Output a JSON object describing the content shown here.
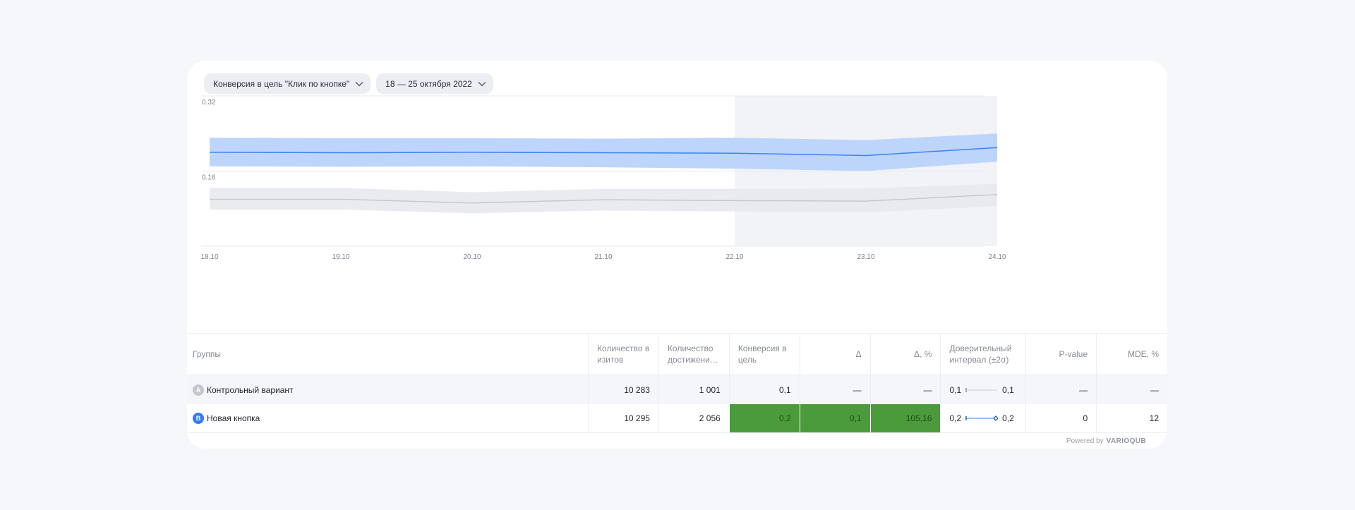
{
  "filters": {
    "metric_label": "Конверсия в цель \"Клик по кнопке\"",
    "date_label": "18 — 25 октября 2022"
  },
  "chart_data": {
    "type": "line",
    "x": [
      "18.10",
      "19.10",
      "20.10",
      "21.10",
      "22.10",
      "23.10",
      "24.10"
    ],
    "y_ticks": [
      "0.32",
      "0.16"
    ],
    "ylim": [
      0,
      0.32
    ],
    "grid": true,
    "highlight_range": [
      "22.10",
      "24.10"
    ],
    "series": [
      {
        "values": [
          0.2,
          0.199,
          0.2,
          0.199,
          0.198,
          0.193,
          0.21
        ],
        "lower": [
          0.17,
          0.169,
          0.17,
          0.168,
          0.165,
          0.16,
          0.18
        ],
        "upper": [
          0.231,
          0.23,
          0.23,
          0.229,
          0.231,
          0.226,
          0.24
        ],
        "color": "#3b82f6",
        "band_color": "#b9d3fb"
      },
      {
        "values": [
          0.1,
          0.1,
          0.092,
          0.099,
          0.097,
          0.096,
          0.11
        ],
        "lower": [
          0.078,
          0.078,
          0.07,
          0.076,
          0.074,
          0.072,
          0.085
        ],
        "upper": [
          0.124,
          0.124,
          0.115,
          0.122,
          0.122,
          0.123,
          0.133
        ],
        "color": "#c5c8d0",
        "band_color": "#e6e7ec"
      }
    ]
  },
  "table": {
    "headers": {
      "group": "Группы",
      "visits_1": "Количество в",
      "visits_2": "изитов",
      "goals_1": "Количество",
      "goals_2": "достижени…",
      "conv_1": "Конверсия в",
      "conv_2": "цель",
      "delta": "Δ",
      "delta_pct": "Δ, %",
      "ci_1": "Доверительный",
      "ci_2": "интервал (±2σ)",
      "pvalue": "P-value",
      "mde": "MDE, %"
    },
    "rows": [
      {
        "badge": "A",
        "name": "Контрольный вариант",
        "visits": "10 283",
        "goals": "1 001",
        "conversion": "0,1",
        "delta": "—",
        "delta_pct": "—",
        "ci_low": "0,1",
        "ci_high": "0,1",
        "pvalue": "—",
        "mde": "—"
      },
      {
        "badge": "B",
        "name": "Новая кнопка",
        "visits": "10 295",
        "goals": "2 056",
        "conversion": "0,2",
        "delta": "0,1",
        "delta_pct": "105,16",
        "ci_low": "0,2",
        "ci_high": "0,2",
        "pvalue": "0",
        "mde": "12"
      }
    ]
  },
  "footer": {
    "powered_by": "Powered by",
    "brand": "VARIOQUB"
  },
  "colors": {
    "accent": "#2f7cf6",
    "significant": "#4b9b3c"
  }
}
